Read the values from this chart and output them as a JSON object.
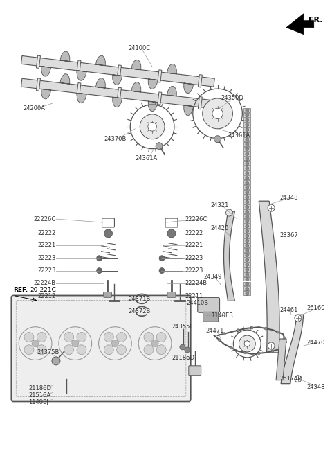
{
  "bg_color": "#ffffff",
  "fig_width": 4.8,
  "fig_height": 6.48,
  "dpi": 100,
  "fr_label": "FR.",
  "ref_label": "REF.",
  "ref_part": "20-221C"
}
